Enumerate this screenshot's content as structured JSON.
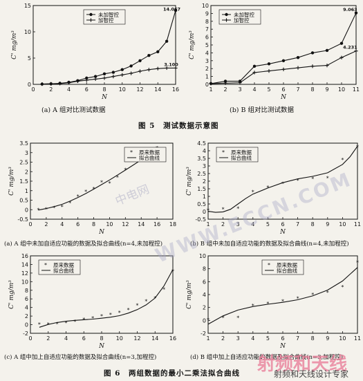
{
  "fig5": {
    "title": "图 5　测试数据示意图"
  },
  "fig6": {
    "title": "图 6　两组数据的最小二乘法拟合曲线"
  },
  "watermarks": {
    "w1": "中电网",
    "w2": "WWW.ECCN.COM",
    "w3": "射频和天线",
    "w4": "射频和天线设计专家"
  },
  "chart_data": [
    {
      "id": "5a",
      "type": "line",
      "caption": "(a) A 组对比测试数据",
      "xlabel": "N",
      "ylabel": "C' mg/m³",
      "xlim": [
        0,
        16
      ],
      "ylim": [
        0,
        15
      ],
      "xticks": [
        0,
        2,
        4,
        6,
        8,
        10,
        12,
        14,
        16
      ],
      "yticks": [
        0,
        5,
        10,
        15
      ],
      "legend": {
        "position": "top-center",
        "entries": [
          "未加智控",
          "加智控"
        ]
      },
      "x": [
        1,
        2,
        3,
        4,
        5,
        6,
        7,
        8,
        9,
        10,
        11,
        12,
        13,
        14,
        15,
        16
      ],
      "series": [
        {
          "name": "未加智控",
          "marker": "circle",
          "values": [
            0.05,
            0.1,
            0.2,
            0.4,
            0.7,
            1.2,
            1.5,
            2.0,
            2.3,
            2.8,
            3.5,
            4.5,
            5.5,
            6.2,
            8.2,
            14.067
          ]
        },
        {
          "name": "加智控",
          "marker": "plus",
          "values": [
            0.05,
            0.1,
            0.15,
            0.3,
            0.6,
            0.8,
            1.0,
            1.2,
            1.5,
            1.8,
            2.1,
            2.5,
            2.8,
            3.0,
            3.1,
            3.1
          ]
        }
      ],
      "annotations": [
        {
          "text": "14.067",
          "x": 14.6,
          "y": 14.0
        },
        {
          "text": "3.100",
          "x": 14.7,
          "y": 3.5
        }
      ]
    },
    {
      "id": "5b",
      "type": "line",
      "caption": "(b) B 组对比测试数据",
      "xlabel": "N",
      "ylabel": "C' mg/m³",
      "xlim": [
        1,
        11
      ],
      "ylim": [
        0,
        10
      ],
      "xticks": [
        1,
        2,
        3,
        4,
        5,
        6,
        7,
        8,
        9,
        10,
        11
      ],
      "yticks": [
        0,
        1,
        2,
        3,
        4,
        5,
        6,
        7,
        8,
        9,
        10
      ],
      "legend": {
        "position": "top-left",
        "entries": [
          "未加智控",
          "加智控"
        ]
      },
      "x": [
        1,
        2,
        3,
        4,
        5,
        6,
        7,
        8,
        9,
        10,
        11
      ],
      "series": [
        {
          "name": "未加智控",
          "marker": "circle",
          "values": [
            0.1,
            0.4,
            0.4,
            2.3,
            2.6,
            3.0,
            3.4,
            4.0,
            4.3,
            5.2,
            9.063
          ]
        },
        {
          "name": "加智控",
          "marker": "plus",
          "values": [
            0.1,
            0.15,
            0.2,
            1.5,
            1.7,
            1.9,
            2.1,
            2.3,
            2.4,
            3.4,
            4.231
          ]
        }
      ],
      "annotations": [
        {
          "text": "9.063",
          "x": 10.1,
          "y": 9.3
        },
        {
          "text": "4.231",
          "x": 10.1,
          "y": 4.5
        }
      ]
    },
    {
      "id": "6a",
      "type": "scatter",
      "caption": "(a) A 组中未加自适应功能的数据及拟合曲线(n=4,未加程控)",
      "xlabel": "N",
      "ylabel": "C' mg/m³",
      "xlim": [
        0,
        18
      ],
      "ylim": [
        -0.5,
        3.5
      ],
      "xticks": [
        0,
        2,
        4,
        6,
        8,
        10,
        12,
        14,
        16,
        18
      ],
      "yticks": [
        -0.5,
        0,
        0.5,
        1.0,
        1.5,
        2.0,
        2.5,
        3.0,
        3.5
      ],
      "legend": {
        "position": "top-right",
        "entries": [
          "原来数据",
          "拟合曲线"
        ]
      },
      "x": [
        1,
        2,
        3,
        4,
        5,
        6,
        7,
        8,
        9,
        10,
        11,
        12,
        13,
        14,
        15,
        16,
        17
      ],
      "points": [
        0.0,
        0.03,
        0.1,
        0.15,
        0.35,
        0.7,
        0.95,
        1.1,
        1.45,
        1.4,
        1.7,
        2.1,
        2.85,
        2.9,
        3.05,
        3.25,
        3.1
      ],
      "fit": [
        [
          1,
          -0.02
        ],
        [
          2,
          0.06
        ],
        [
          3,
          0.16
        ],
        [
          4,
          0.28
        ],
        [
          5,
          0.45
        ],
        [
          6,
          0.64
        ],
        [
          7,
          0.85
        ],
        [
          8,
          1.08
        ],
        [
          9,
          1.32
        ],
        [
          10,
          1.56
        ],
        [
          11,
          1.82
        ],
        [
          12,
          2.08
        ],
        [
          13,
          2.35
        ],
        [
          14,
          2.62
        ],
        [
          15,
          2.9
        ],
        [
          16,
          3.12
        ],
        [
          17,
          3.2
        ]
      ]
    },
    {
      "id": "6b",
      "type": "scatter",
      "caption": "(b) B 组中未加自适应功能的数据及拟合曲线(n=4,未加程控)",
      "xlabel": "N",
      "ylabel": "C' mg/m³",
      "xlim": [
        1,
        11
      ],
      "ylim": [
        -0.5,
        4.5
      ],
      "xticks": [
        1,
        2,
        3,
        4,
        5,
        6,
        7,
        8,
        9,
        10,
        11
      ],
      "yticks": [
        -0.5,
        0,
        0.5,
        1.0,
        1.5,
        2.0,
        2.5,
        3.0,
        3.5,
        4.0,
        4.5
      ],
      "legend": {
        "position": "top-left",
        "entries": [
          "原来数据",
          "拟合曲线"
        ]
      },
      "x": [
        1,
        2,
        3,
        4,
        5,
        6,
        7,
        8,
        9,
        10,
        11
      ],
      "points": [
        0.1,
        0.15,
        0.2,
        1.3,
        1.6,
        1.85,
        2.05,
        2.15,
        2.2,
        3.4,
        4.25
      ],
      "fit": [
        [
          1,
          0.02
        ],
        [
          1.5,
          -0.05
        ],
        [
          2,
          -0.02
        ],
        [
          2.5,
          0.15
        ],
        [
          3,
          0.5
        ],
        [
          3.5,
          0.85
        ],
        [
          4,
          1.15
        ],
        [
          5,
          1.55
        ],
        [
          6,
          1.9
        ],
        [
          7,
          2.15
        ],
        [
          8,
          2.32
        ],
        [
          9,
          2.55
        ],
        [
          10,
          3.1
        ],
        [
          10.5,
          3.6
        ],
        [
          11,
          4.3
        ]
      ]
    },
    {
      "id": "6c",
      "type": "scatter",
      "caption": "(c) A 组中加上自适应功能的数据及拟合曲线(n=3,加程控)",
      "xlabel": "N",
      "ylabel": "C' mg/m³",
      "xlim": [
        0,
        16
      ],
      "ylim": [
        -2,
        16
      ],
      "xticks": [
        0,
        2,
        4,
        6,
        8,
        10,
        12,
        14,
        16
      ],
      "yticks": [
        -2,
        0,
        2,
        4,
        6,
        8,
        10,
        12,
        14,
        16
      ],
      "legend": {
        "position": "top-left",
        "entries": [
          "原来数据",
          "拟合曲线"
        ]
      },
      "x": [
        1,
        2,
        3,
        4,
        5,
        6,
        7,
        8,
        9,
        10,
        11,
        12,
        13,
        14,
        15,
        16
      ],
      "points": [
        0.05,
        0.1,
        0.2,
        0.4,
        0.7,
        1.2,
        1.5,
        2.0,
        2.3,
        2.8,
        3.5,
        4.5,
        5.5,
        6.2,
        8.2,
        12.5
      ],
      "fit": [
        [
          1,
          -0.6
        ],
        [
          2,
          0.05
        ],
        [
          3,
          0.5
        ],
        [
          4,
          0.8
        ],
        [
          5,
          1.0
        ],
        [
          6,
          1.15
        ],
        [
          7,
          1.3
        ],
        [
          8,
          1.5
        ],
        [
          9,
          1.75
        ],
        [
          10,
          2.1
        ],
        [
          11,
          2.7
        ],
        [
          12,
          3.5
        ],
        [
          13,
          4.6
        ],
        [
          14,
          6.2
        ],
        [
          15,
          9.0
        ],
        [
          16,
          12.8
        ]
      ]
    },
    {
      "id": "6d",
      "type": "scatter",
      "caption": "(d) B 组中加上自适应功能的数据及拟合曲线(n=3,加程控)",
      "xlabel": "N",
      "ylabel": "C' mg/m³",
      "xlim": [
        1,
        11
      ],
      "ylim": [
        -2,
        10
      ],
      "xticks": [
        1,
        2,
        3,
        4,
        5,
        6,
        7,
        8,
        9,
        10,
        11
      ],
      "yticks": [
        -2,
        0,
        2,
        4,
        6,
        8,
        10
      ],
      "legend": {
        "position": "top-center",
        "entries": [
          "原来数据",
          "拟合曲线"
        ]
      },
      "x": [
        1,
        2,
        3,
        4,
        5,
        6,
        7,
        8,
        9,
        10,
        11
      ],
      "points": [
        0.1,
        0.4,
        0.4,
        2.3,
        2.6,
        3.0,
        3.4,
        4.0,
        4.3,
        5.2,
        9.0
      ],
      "fit": [
        [
          1,
          -0.6
        ],
        [
          2,
          0.7
        ],
        [
          3,
          1.6
        ],
        [
          4,
          2.15
        ],
        [
          5,
          2.5
        ],
        [
          6,
          2.8
        ],
        [
          7,
          3.2
        ],
        [
          8,
          3.8
        ],
        [
          9,
          4.7
        ],
        [
          10,
          6.1
        ],
        [
          11,
          8.2
        ]
      ]
    }
  ]
}
